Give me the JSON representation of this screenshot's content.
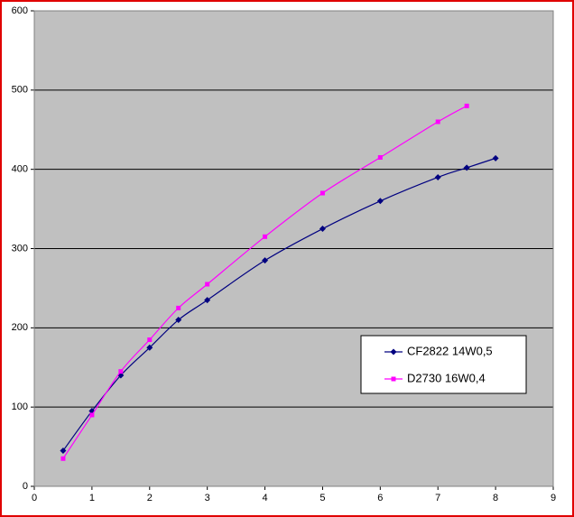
{
  "chart_data": {
    "type": "line",
    "series": [
      {
        "name": "CF2822 14W0,5",
        "color": "#000080",
        "marker": "diamond",
        "x": [
          0.5,
          1,
          1.5,
          2,
          2.5,
          3,
          4,
          5,
          6,
          7,
          7.5,
          8
        ],
        "values": [
          45,
          95,
          140,
          175,
          210,
          235,
          285,
          325,
          360,
          390,
          402,
          414
        ]
      },
      {
        "name": "D2730 16W0,4",
        "color": "#ff00ff",
        "marker": "square",
        "x": [
          0.5,
          1,
          1.5,
          2,
          2.5,
          3,
          4,
          5,
          6,
          7,
          7.5
        ],
        "values": [
          35,
          90,
          145,
          185,
          225,
          255,
          315,
          370,
          415,
          460,
          480
        ]
      }
    ],
    "xlim": [
      0,
      9
    ],
    "xticks": [
      0,
      1,
      2,
      3,
      4,
      5,
      6,
      7,
      8,
      9
    ],
    "ylim": [
      0,
      600
    ],
    "yticks": [
      0,
      100,
      200,
      300,
      400,
      500,
      600
    ],
    "grid": true,
    "plot_background": "#c0c0c0",
    "smooth": true
  }
}
